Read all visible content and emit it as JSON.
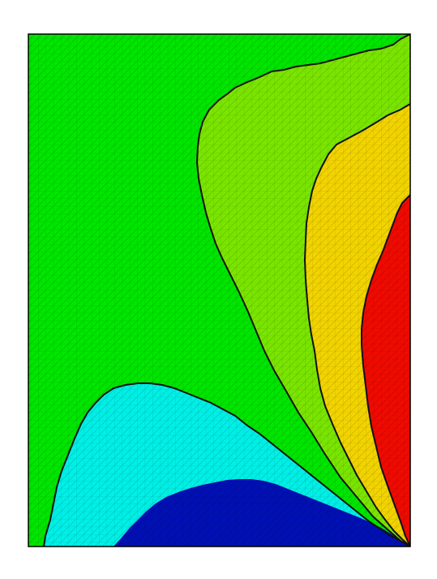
{
  "figure": {
    "type": "filled-contour-plot-on-triangular-mesh",
    "axes_visible": false,
    "mesh_lines": true,
    "colors": {
      "background": "#ffffff",
      "frame": "#000000",
      "contour_line": "#111111",
      "mesh_line": "rgba(0,0,0,0.22)"
    },
    "regions": [
      {
        "name": "green-region",
        "color": "#00e600"
      },
      {
        "name": "light-green-region",
        "color": "#7ae600"
      },
      {
        "name": "yellow-region",
        "color": "#f2d400"
      },
      {
        "name": "red-region",
        "color": "#f00a00"
      },
      {
        "name": "cyan-region",
        "color": "#00f0e6"
      },
      {
        "name": "blue-region",
        "color": "#0010b4"
      }
    ]
  }
}
